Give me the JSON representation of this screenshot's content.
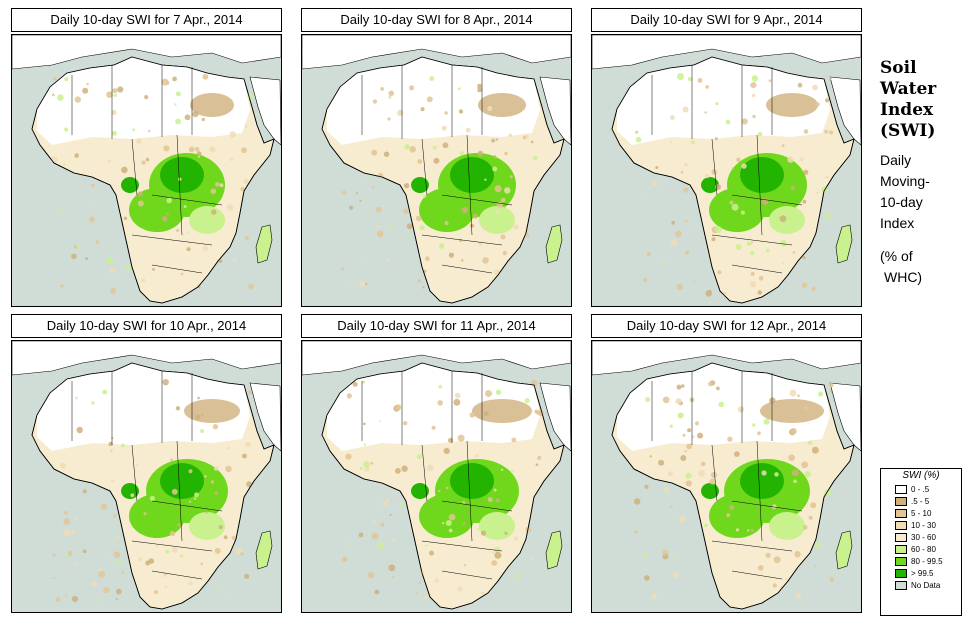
{
  "panels": [
    {
      "title": "Daily 10-day SWI for  7 Apr., 2014"
    },
    {
      "title": "Daily 10-day SWI for  8 Apr., 2014"
    },
    {
      "title": "Daily 10-day SWI for  9 Apr., 2014"
    },
    {
      "title": "Daily 10-day SWI for  10 Apr., 2014"
    },
    {
      "title": "Daily 10-day SWI for  11 Apr., 2014"
    },
    {
      "title": "Daily 10-day SWI for  12 Apr., 2014"
    }
  ],
  "side_title": {
    "line1": "Soil",
    "line2": "Water",
    "line3": "Index",
    "line4": "(SWI)",
    "desc1": "Daily",
    "desc2": "Moving-",
    "desc3": "10-day",
    "desc4": "Index",
    "unit1": "(% of",
    "unit2": "WHC)"
  },
  "legend": {
    "title": "SWI (%)",
    "items": [
      {
        "label": "0 - .5",
        "color": "#ffffff"
      },
      {
        "label": ".5 - 5",
        "color": "#cfb07c"
      },
      {
        "label": "5 - 10",
        "color": "#e3c495"
      },
      {
        "label": "10 - 30",
        "color": "#f0dcb6"
      },
      {
        "label": "30 - 60",
        "color": "#f7ecd0"
      },
      {
        "label": "60 - 80",
        "color": "#c9f18e"
      },
      {
        "label": "80 - 99.5",
        "color": "#6fd81c"
      },
      {
        "label": "> 99.5",
        "color": "#22b400"
      },
      {
        "label": "No Data",
        "color": "#cfddd6"
      }
    ]
  }
}
